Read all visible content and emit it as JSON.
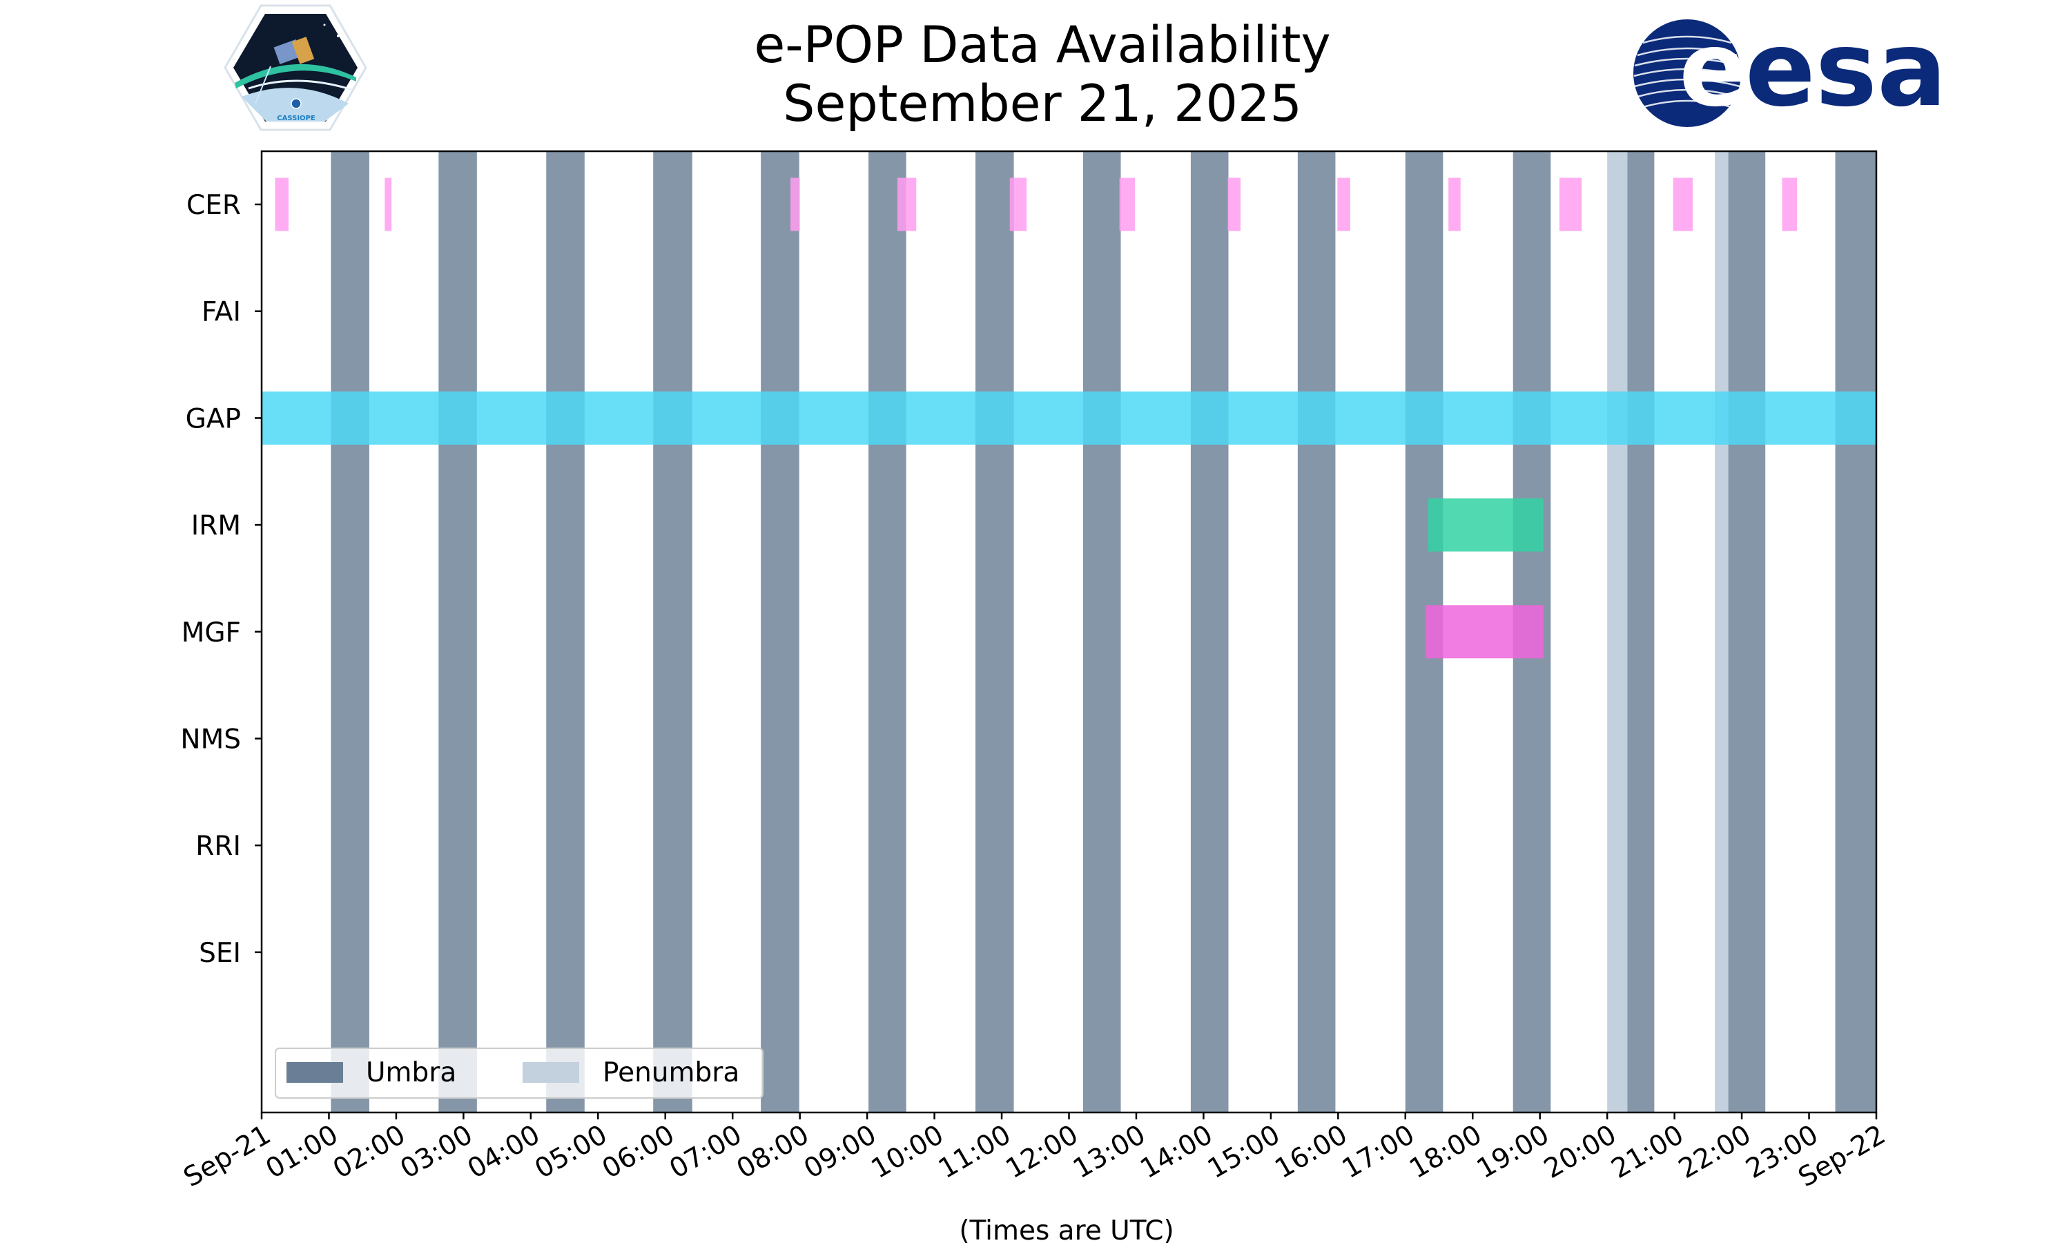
{
  "logos": {
    "left_badge_text": "CASSIOPE",
    "right_brand_text": "esa",
    "right_brand_color": "#0b2a7a"
  },
  "chart_data": {
    "type": "timeline",
    "title": "e-POP Data Availability",
    "subtitle": "September 21, 2025",
    "xlabel": "(Times are UTC)",
    "x_unit": "hours UTC",
    "xlim": [
      0,
      24
    ],
    "x_ticks": [
      {
        "hour": 0,
        "label": "Sep-21"
      },
      {
        "hour": 1,
        "label": "01:00"
      },
      {
        "hour": 2,
        "label": "02:00"
      },
      {
        "hour": 3,
        "label": "03:00"
      },
      {
        "hour": 4,
        "label": "04:00"
      },
      {
        "hour": 5,
        "label": "05:00"
      },
      {
        "hour": 6,
        "label": "06:00"
      },
      {
        "hour": 7,
        "label": "07:00"
      },
      {
        "hour": 8,
        "label": "08:00"
      },
      {
        "hour": 9,
        "label": "09:00"
      },
      {
        "hour": 10,
        "label": "10:00"
      },
      {
        "hour": 11,
        "label": "11:00"
      },
      {
        "hour": 12,
        "label": "12:00"
      },
      {
        "hour": 13,
        "label": "13:00"
      },
      {
        "hour": 14,
        "label": "14:00"
      },
      {
        "hour": 15,
        "label": "15:00"
      },
      {
        "hour": 16,
        "label": "16:00"
      },
      {
        "hour": 17,
        "label": "17:00"
      },
      {
        "hour": 18,
        "label": "18:00"
      },
      {
        "hour": 19,
        "label": "19:00"
      },
      {
        "hour": 20,
        "label": "20:00"
      },
      {
        "hour": 21,
        "label": "21:00"
      },
      {
        "hour": 22,
        "label": "22:00"
      },
      {
        "hour": 23,
        "label": "23:00"
      },
      {
        "hour": 24,
        "label": "Sep-22"
      }
    ],
    "instruments": [
      "CER",
      "FAI",
      "GAP",
      "IRM",
      "MGF",
      "NMS",
      "RRI",
      "SEI"
    ],
    "y_slots": 9,
    "umbra_color": "#6a7f95",
    "penumbra_color": "#c3d0de",
    "umbra": [
      [
        1.03,
        1.6
      ],
      [
        2.63,
        3.2
      ],
      [
        4.23,
        4.8
      ],
      [
        5.82,
        6.4
      ],
      [
        7.42,
        7.99
      ],
      [
        9.02,
        9.58
      ],
      [
        10.61,
        11.18
      ],
      [
        12.21,
        12.77
      ],
      [
        13.81,
        14.37
      ],
      [
        15.4,
        15.96
      ],
      [
        17.0,
        17.56
      ],
      [
        18.6,
        19.16
      ],
      [
        20.3,
        20.7
      ],
      [
        21.8,
        22.35
      ],
      [
        23.39,
        24.0
      ]
    ],
    "penumbra": [
      [
        20.0,
        20.3
      ],
      [
        21.6,
        21.8
      ]
    ],
    "legend": {
      "position": "lower-left",
      "entries": [
        {
          "label": "Umbra",
          "kind": "umbra"
        },
        {
          "label": "Penumbra",
          "kind": "penumbra"
        }
      ]
    },
    "series": [
      {
        "name": "CER",
        "color": "#ff9ef0",
        "intervals": [
          [
            0.2,
            0.4
          ],
          [
            1.83,
            1.93
          ],
          [
            7.86,
            8.0
          ],
          [
            9.45,
            9.73
          ],
          [
            11.12,
            11.37
          ],
          [
            12.75,
            12.98
          ],
          [
            14.36,
            14.55
          ],
          [
            15.99,
            16.18
          ],
          [
            17.64,
            17.82
          ],
          [
            19.29,
            19.62
          ],
          [
            20.98,
            21.27
          ],
          [
            22.6,
            22.82
          ]
        ]
      },
      {
        "name": "FAI",
        "color": "#9ecae1",
        "intervals": []
      },
      {
        "name": "GAP",
        "color": "#4dd8f6",
        "intervals": [
          [
            0.0,
            24.0
          ]
        ]
      },
      {
        "name": "IRM",
        "color": "#33d4a5",
        "intervals": [
          [
            17.34,
            19.05
          ]
        ]
      },
      {
        "name": "MGF",
        "color": "#ee66dd",
        "intervals": [
          [
            17.3,
            19.05
          ]
        ]
      },
      {
        "name": "NMS",
        "color": "#999999",
        "intervals": []
      },
      {
        "name": "RRI",
        "color": "#999999",
        "intervals": []
      },
      {
        "name": "SEI",
        "color": "#999999",
        "intervals": []
      }
    ]
  }
}
